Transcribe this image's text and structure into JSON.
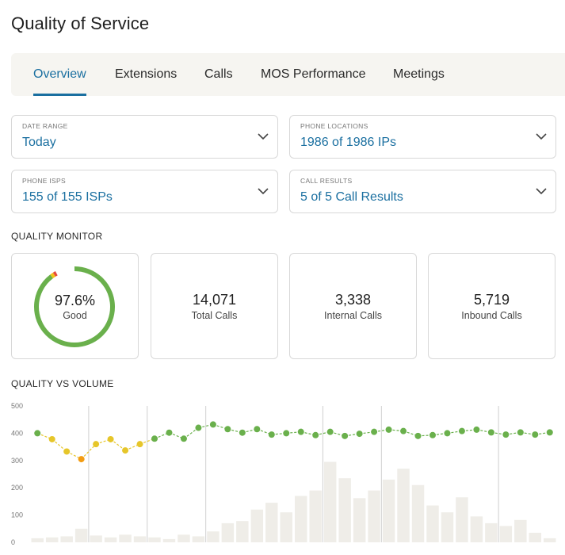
{
  "page": {
    "title": "Quality of Service"
  },
  "tabs": [
    {
      "label": "Overview",
      "active": true
    },
    {
      "label": "Extensions",
      "active": false
    },
    {
      "label": "Calls",
      "active": false
    },
    {
      "label": "MOS Performance",
      "active": false
    },
    {
      "label": "Meetings",
      "active": false
    }
  ],
  "filters": {
    "date_range": {
      "label": "DATE RANGE",
      "value": "Today"
    },
    "phone_locations": {
      "label": "PHONE LOCATIONS",
      "value": "1986 of 1986 IPs"
    },
    "phone_isps": {
      "label": "PHONE ISPS",
      "value": "155 of 155 ISPs"
    },
    "call_results": {
      "label": "CALL RESULTS",
      "value": "5 of 5 Call Results"
    }
  },
  "quality_monitor": {
    "title": "QUALITY MONITOR",
    "good_percent": "97.6%",
    "good_label": "Good",
    "donut": {
      "good": 0.976,
      "fair": 0.013,
      "poor": 0.011
    },
    "total_calls": {
      "value": "14,071",
      "label": "Total Calls"
    },
    "internal_calls": {
      "value": "3,338",
      "label": "Internal Calls"
    },
    "inbound_calls": {
      "value": "5,719",
      "label": "Inbound Calls"
    }
  },
  "colors": {
    "accent": "#1a6fa0",
    "good": "#6ab04c",
    "fair": "#f0c419",
    "poor": "#e74c3c",
    "bar": "#efede8",
    "point_warn": "#f39c12",
    "point_mid": "#e6c62a"
  },
  "quality_vs_volume": {
    "title": "QUALITY VS VOLUME",
    "chart_data": {
      "type": "bar",
      "yticks": [
        0,
        100,
        200,
        300,
        400,
        500
      ],
      "ylim": [
        0,
        500
      ],
      "volume": [
        15,
        18,
        22,
        50,
        25,
        18,
        28,
        22,
        18,
        12,
        28,
        22,
        40,
        70,
        78,
        120,
        145,
        110,
        170,
        190,
        295,
        235,
        162,
        190,
        230,
        270,
        210,
        135,
        110,
        165,
        95,
        70,
        60,
        82,
        35,
        15
      ],
      "quality": [
        400,
        378,
        333,
        305,
        360,
        378,
        337,
        360,
        380,
        402,
        380,
        420,
        432,
        415,
        402,
        415,
        395,
        400,
        405,
        393,
        405,
        390,
        398,
        405,
        413,
        408,
        390,
        393,
        400,
        408,
        413,
        403,
        395,
        403,
        395,
        403
      ],
      "quality_color_class": [
        "good",
        "mid",
        "mid",
        "warn",
        "mid",
        "mid",
        "mid",
        "mid",
        "good",
        "good",
        "good",
        "good",
        "good",
        "good",
        "good",
        "good",
        "good",
        "good",
        "good",
        "good",
        "good",
        "good",
        "good",
        "good",
        "good",
        "good",
        "good",
        "good",
        "good",
        "good",
        "good",
        "good",
        "good",
        "good",
        "good",
        "good"
      ],
      "vertical_gridlines_after": [
        3,
        7,
        11,
        19,
        23,
        31
      ]
    }
  }
}
